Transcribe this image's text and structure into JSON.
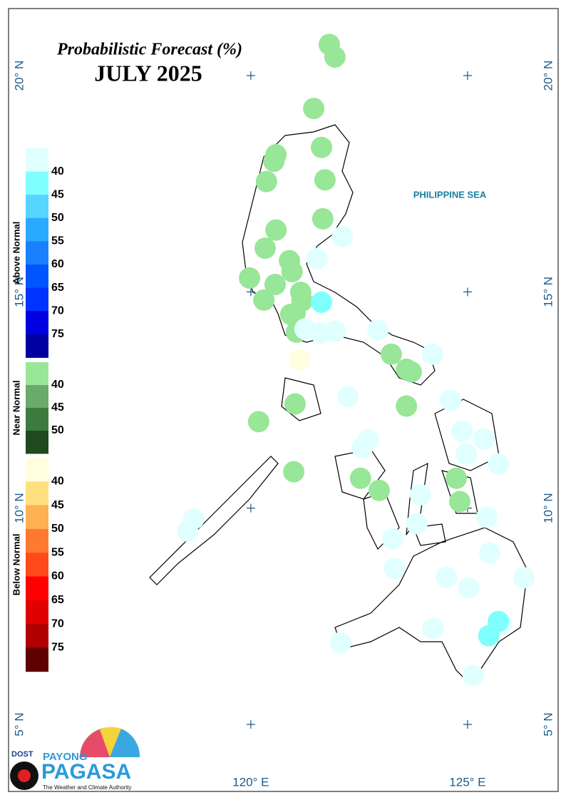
{
  "title": "Probabilistic Forecast (%)",
  "subtitle": "JULY 2025",
  "sea_label": "PHILIPPINE SEA",
  "map": {
    "xlim": [
      114.41,
      127.09
    ],
    "ylim": [
      3.45,
      21.55
    ],
    "xticks": [
      {
        "value": 120,
        "label": "120° E"
      },
      {
        "value": 125,
        "label": "125° E"
      }
    ],
    "yticks": [
      {
        "value": 20,
        "label": "20° N"
      },
      {
        "value": 15,
        "label": "15° N"
      },
      {
        "value": 10,
        "label": "10° N"
      },
      {
        "value": 5,
        "label": "5° N"
      }
    ]
  },
  "legend": [
    {
      "title": "Above Normal",
      "colors": [
        "#e0ffff",
        "#80ffff",
        "#55d5ff",
        "#2aaaff",
        "#1a80ff",
        "#0055ff",
        "#0033ff",
        "#0000e0",
        "#0000a0"
      ],
      "labels": [
        40,
        45,
        50,
        55,
        60,
        65,
        70,
        75
      ]
    },
    {
      "title": "Near Normal",
      "colors": [
        "#98e698",
        "#6aaa6a",
        "#3d7a3d",
        "#1f4a1f"
      ],
      "labels": [
        40,
        45,
        50
      ]
    },
    {
      "title": "Below Normal",
      "colors": [
        "#ffffe0",
        "#ffe080",
        "#ffb050",
        "#ff7a30",
        "#ff4a1a",
        "#ff0000",
        "#e00000",
        "#b00000",
        "#600000"
      ],
      "labels": [
        40,
        45,
        50,
        55,
        60,
        65,
        70,
        75
      ]
    }
  ],
  "stations": [
    {
      "lon": 121.81,
      "lat": 20.72,
      "color": "#98e698"
    },
    {
      "lon": 121.94,
      "lat": 20.43,
      "color": "#98e698"
    },
    {
      "lon": 121.45,
      "lat": 19.24,
      "color": "#98e698"
    },
    {
      "lon": 121.63,
      "lat": 18.34,
      "color": "#98e698"
    },
    {
      "lon": 120.58,
      "lat": 18.17,
      "color": "#98e698"
    },
    {
      "lon": 120.53,
      "lat": 18.02,
      "color": "#98e698"
    },
    {
      "lon": 121.71,
      "lat": 17.59,
      "color": "#98e698"
    },
    {
      "lon": 120.36,
      "lat": 17.55,
      "color": "#98e698"
    },
    {
      "lon": 121.66,
      "lat": 16.69,
      "color": "#98e698"
    },
    {
      "lon": 120.58,
      "lat": 16.43,
      "color": "#98e698"
    },
    {
      "lon": 120.33,
      "lat": 16.01,
      "color": "#98e698"
    },
    {
      "lon": 120.89,
      "lat": 15.72,
      "color": "#98e698"
    },
    {
      "lon": 120.95,
      "lat": 15.47,
      "color": "#98e698"
    },
    {
      "lon": 119.97,
      "lat": 15.32,
      "color": "#98e698"
    },
    {
      "lon": 120.56,
      "lat": 15.17,
      "color": "#98e698"
    },
    {
      "lon": 121.15,
      "lat": 14.99,
      "color": "#98e698"
    },
    {
      "lon": 120.3,
      "lat": 14.81,
      "color": "#98e698"
    },
    {
      "lon": 121.18,
      "lat": 14.79,
      "color": "#98e698"
    },
    {
      "lon": 121.02,
      "lat": 14.5,
      "color": "#98e698"
    },
    {
      "lon": 120.92,
      "lat": 14.48,
      "color": "#98e698"
    },
    {
      "lon": 121.05,
      "lat": 14.07,
      "color": "#98e698"
    },
    {
      "lon": 123.24,
      "lat": 13.56,
      "color": "#98e698"
    },
    {
      "lon": 123.59,
      "lat": 13.21,
      "color": "#98e698"
    },
    {
      "lon": 123.7,
      "lat": 13.15,
      "color": "#98e698"
    },
    {
      "lon": 123.59,
      "lat": 12.36,
      "color": "#98e698"
    },
    {
      "lon": 121.02,
      "lat": 12.41,
      "color": "#98e698"
    },
    {
      "lon": 120.18,
      "lat": 12.0,
      "color": "#98e698"
    },
    {
      "lon": 120.99,
      "lat": 10.84,
      "color": "#98e698"
    },
    {
      "lon": 122.53,
      "lat": 10.69,
      "color": "#98e698"
    },
    {
      "lon": 122.96,
      "lat": 10.41,
      "color": "#98e698"
    },
    {
      "lon": 124.74,
      "lat": 10.69,
      "color": "#98e698"
    },
    {
      "lon": 124.82,
      "lat": 10.15,
      "color": "#98e698"
    },
    {
      "lon": 122.11,
      "lat": 16.28,
      "color": "#e0ffff"
    },
    {
      "lon": 121.53,
      "lat": 15.77,
      "color": "#e0ffff"
    },
    {
      "lon": 121.94,
      "lat": 14.09,
      "color": "#e0ffff"
    },
    {
      "lon": 121.25,
      "lat": 14.14,
      "color": "#e0ffff"
    },
    {
      "lon": 121.61,
      "lat": 14.05,
      "color": "#e0ffff"
    },
    {
      "lon": 122.93,
      "lat": 14.12,
      "color": "#e0ffff"
    },
    {
      "lon": 124.19,
      "lat": 13.56,
      "color": "#e0ffff"
    },
    {
      "lon": 122.24,
      "lat": 12.57,
      "color": "#e0ffff"
    },
    {
      "lon": 124.61,
      "lat": 12.49,
      "color": "#e0ffff"
    },
    {
      "lon": 122.71,
      "lat": 11.58,
      "color": "#e0ffff"
    },
    {
      "lon": 124.87,
      "lat": 11.78,
      "color": "#e0ffff"
    },
    {
      "lon": 125.38,
      "lat": 11.6,
      "color": "#e0ffff"
    },
    {
      "lon": 122.57,
      "lat": 11.4,
      "color": "#e0ffff"
    },
    {
      "lon": 124.97,
      "lat": 11.25,
      "color": "#e0ffff"
    },
    {
      "lon": 125.71,
      "lat": 11.02,
      "color": "#e0ffff"
    },
    {
      "lon": 123.91,
      "lat": 10.31,
      "color": "#e0ffff"
    },
    {
      "lon": 125.44,
      "lat": 9.79,
      "color": "#e0ffff"
    },
    {
      "lon": 123.83,
      "lat": 9.64,
      "color": "#e0ffff"
    },
    {
      "lon": 118.68,
      "lat": 9.75,
      "color": "#e0ffff"
    },
    {
      "lon": 118.54,
      "lat": 9.47,
      "color": "#e0ffff"
    },
    {
      "lon": 123.27,
      "lat": 9.29,
      "color": "#e0ffff"
    },
    {
      "lon": 125.51,
      "lat": 8.96,
      "color": "#e0ffff"
    },
    {
      "lon": 123.31,
      "lat": 8.6,
      "color": "#e0ffff"
    },
    {
      "lon": 124.51,
      "lat": 8.4,
      "color": "#e0ffff"
    },
    {
      "lon": 125.03,
      "lat": 8.15,
      "color": "#e0ffff"
    },
    {
      "lon": 126.3,
      "lat": 8.39,
      "color": "#e0ffff"
    },
    {
      "lon": 124.21,
      "lat": 7.22,
      "color": "#e0ffff"
    },
    {
      "lon": 125.79,
      "lat": 7.32,
      "color": "#e0ffff"
    },
    {
      "lon": 122.07,
      "lat": 6.89,
      "color": "#e0ffff"
    },
    {
      "lon": 125.13,
      "lat": 6.13,
      "color": "#e0ffff"
    },
    {
      "lon": 121.63,
      "lat": 14.76,
      "color": "#80ffff"
    },
    {
      "lon": 125.71,
      "lat": 7.38,
      "color": "#80ffff"
    },
    {
      "lon": 125.49,
      "lat": 7.05,
      "color": "#80ffff"
    },
    {
      "lon": 121.13,
      "lat": 13.43,
      "color": "#ffffe0"
    }
  ],
  "logo": {
    "agency": "DOST",
    "brand_top": "PAYONG",
    "brand": "PAGASA",
    "tagline": "The Weather and Climate Authority"
  }
}
